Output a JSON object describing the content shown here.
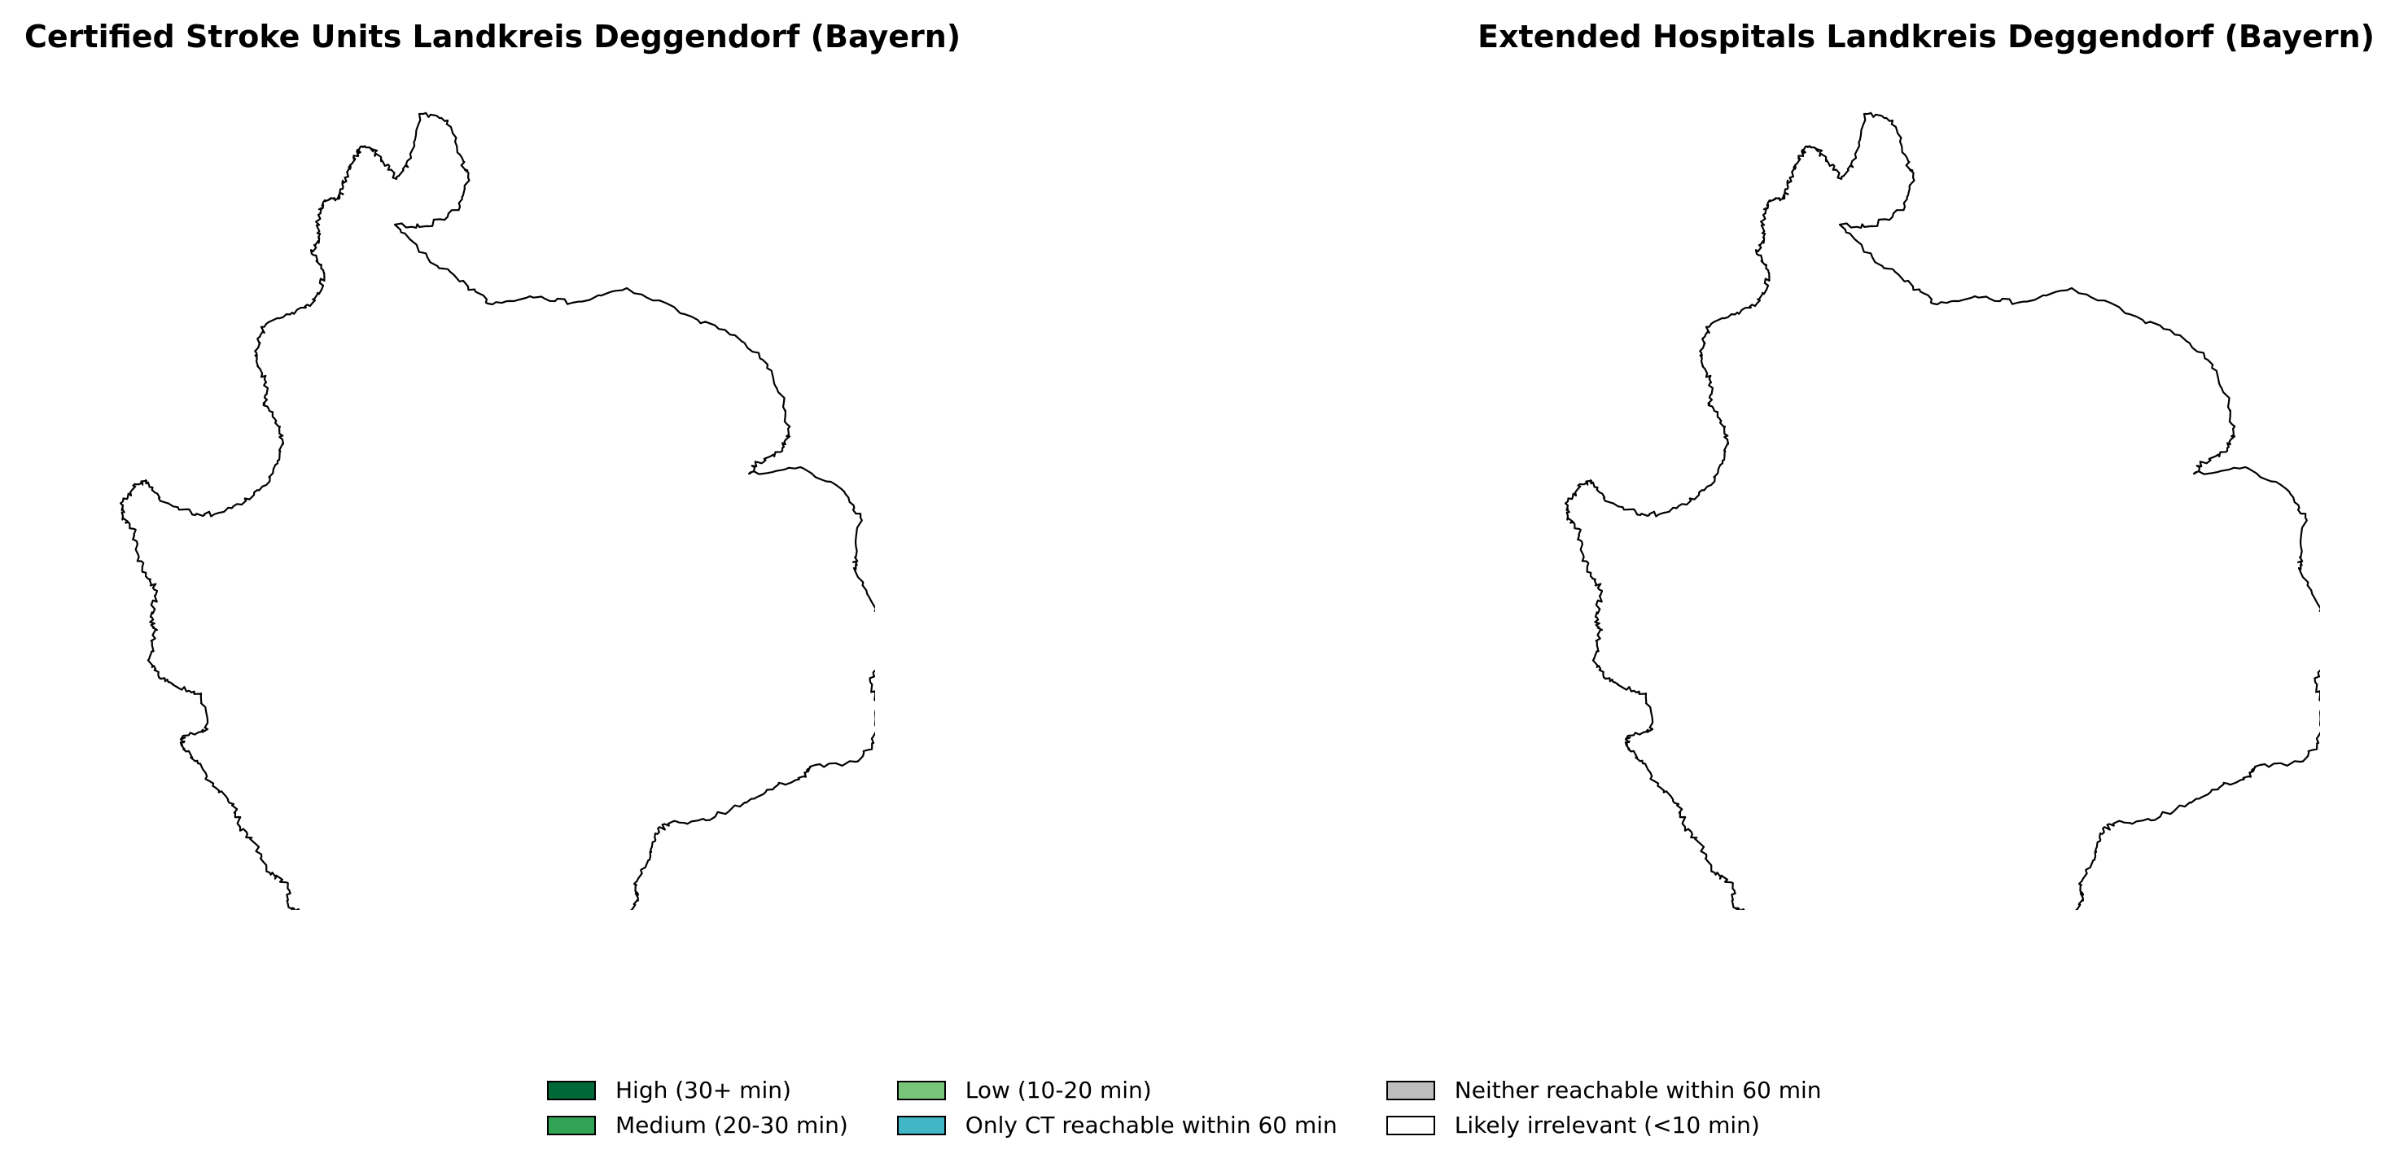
{
  "maps": {
    "left": {
      "title": "Certified Stroke Units Landkreis Deggendorf (Bayern)"
    },
    "right": {
      "title": "Extended Hospitals Landkreis Deggendorf (Bayern)"
    }
  },
  "legend": {
    "items": [
      {
        "label": "High (30+ min)",
        "color": "#006837"
      },
      {
        "label": "Medium (20-30 min)",
        "color": "#31a354"
      },
      {
        "label": "Low (10-20 min)",
        "color": "#78c679"
      },
      {
        "label": "Only CT reachable within 60 min",
        "color": "#41b6c4"
      },
      {
        "label": "Neither reachable within 60 min",
        "color": "#bdbdbd"
      },
      {
        "label": "Likely irrelevant (<10 min)",
        "color": "#ffffff"
      }
    ]
  }
}
